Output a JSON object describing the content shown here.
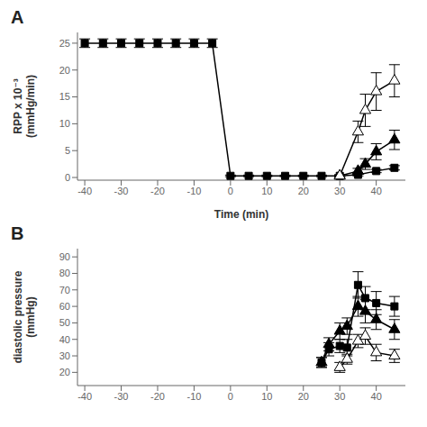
{
  "chart_data": [
    {
      "type": "line",
      "title": "A",
      "xlabel": "Time (min)",
      "ylabel": "RPP x 10⁻³\n(mmHg/min)",
      "xlim": [
        -42,
        48
      ],
      "ylim": [
        -0.5,
        27
      ],
      "xticks": [
        -40,
        -30,
        -20,
        -10,
        0,
        10,
        20,
        30,
        40
      ],
      "yticks": [
        0,
        5,
        10,
        15,
        20,
        25
      ],
      "grid": false,
      "series": [
        {
          "color": "black",
          "marker": "square",
          "x": [
            -40,
            -35,
            -30,
            -25,
            -20,
            -15,
            -10,
            -5,
            0,
            5,
            10,
            15,
            20,
            25,
            30,
            35,
            40,
            45
          ],
          "values": [
            25,
            25,
            25,
            25,
            25,
            25,
            25,
            25,
            0.3,
            0.3,
            0.3,
            0.3,
            0.3,
            0.3,
            0.3,
            0.5,
            1.2,
            1.8
          ],
          "yerr": [
            0.8,
            0.8,
            0.8,
            0.8,
            0.8,
            0.8,
            0.8,
            0.8,
            0.15,
            0.15,
            0.15,
            0.15,
            0.15,
            0.15,
            0.15,
            0.2,
            0.3,
            0.4
          ]
        },
        {
          "color": "black",
          "marker": "triangle",
          "x": [
            30,
            35,
            37,
            40,
            45
          ],
          "values": [
            0.3,
            1.2,
            2.5,
            4.8,
            7.0
          ],
          "yerr": [
            0.2,
            0.5,
            1.0,
            1.5,
            1.8
          ]
        },
        {
          "color": "black",
          "marker": "open triangle",
          "x": [
            30,
            35,
            37,
            40,
            45
          ],
          "values": [
            0.3,
            8.5,
            12.5,
            16.0,
            18.0
          ],
          "yerr": [
            0.2,
            2.0,
            3.0,
            3.5,
            3.0
          ]
        }
      ]
    },
    {
      "type": "line",
      "title": "B",
      "ylabel": "diastolic pressure\n(mmHg)",
      "xlim": [
        -42,
        48
      ],
      "ylim": [
        12,
        95
      ],
      "xticks": [
        -40,
        -30,
        -20,
        -10,
        0,
        10,
        20,
        30,
        40
      ],
      "yticks": [
        20,
        30,
        40,
        50,
        60,
        70,
        80,
        90
      ],
      "grid": false,
      "series": [
        {
          "color": "black",
          "marker": "square",
          "x": [
            25,
            27,
            30,
            32,
            35,
            37,
            40,
            45
          ],
          "values": [
            26,
            34,
            36,
            35,
            73,
            65,
            62,
            60
          ],
          "yerr": [
            3,
            4,
            4,
            5,
            8,
            7,
            7,
            6
          ]
        },
        {
          "color": "black",
          "marker": "triangle",
          "x": [
            25,
            27,
            30,
            32,
            35,
            37,
            40,
            45
          ],
          "values": [
            26,
            37,
            45,
            48,
            60,
            57,
            52,
            46
          ],
          "yerr": [
            3,
            4,
            5,
            5,
            6,
            7,
            6,
            6
          ]
        },
        {
          "color": "black",
          "marker": "open triangle",
          "x": [
            30,
            32,
            35,
            37,
            40,
            45
          ],
          "values": [
            23,
            28,
            39,
            42,
            32,
            30
          ],
          "yerr": [
            3,
            3,
            4,
            5,
            5,
            4
          ]
        }
      ]
    }
  ]
}
